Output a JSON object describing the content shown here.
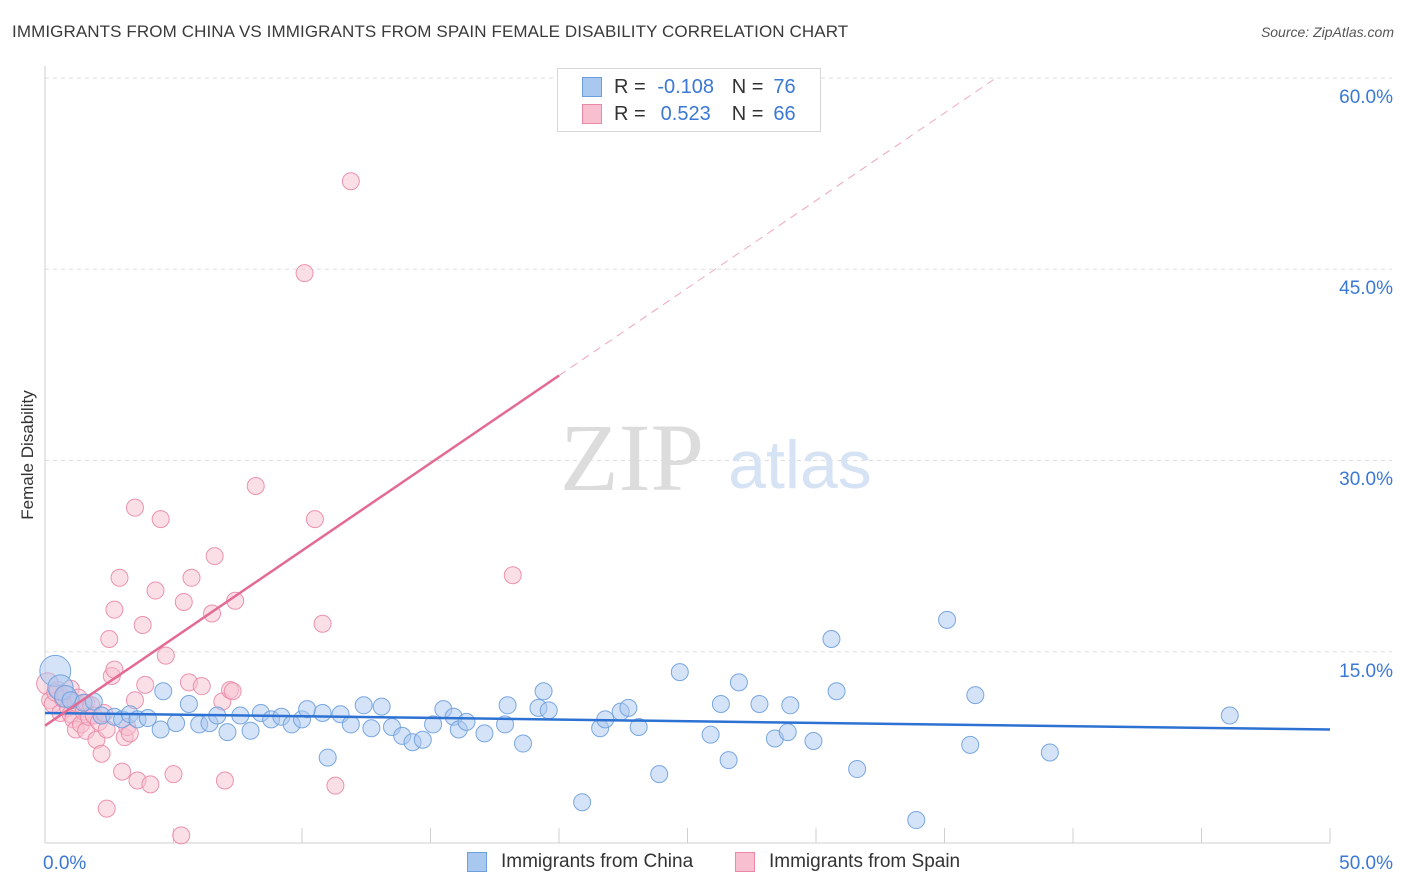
{
  "header": {
    "title": "IMMIGRANTS FROM CHINA VS IMMIGRANTS FROM SPAIN FEMALE DISABILITY CORRELATION CHART",
    "source": "Source: ZipAtlas.com"
  },
  "watermark": {
    "zip": "ZIP",
    "atlas": "atlas"
  },
  "legend": {
    "china": {
      "r_label": "R =",
      "r_value": "-0.108",
      "n_label": "N =",
      "n_value": "76"
    },
    "spain": {
      "r_label": "R =",
      "r_value": "0.523",
      "n_label": "N =",
      "n_value": "66"
    }
  },
  "bottom_legend": {
    "china": "Immigrants from China",
    "spain": "Immigrants from Spain"
  },
  "axes": {
    "x_left_label": "0.0%",
    "x_right_label": "50.0%",
    "y_labels": [
      "60.0%",
      "45.0%",
      "30.0%",
      "15.0%"
    ]
  },
  "colors": {
    "china_fill": "#a9c8f0",
    "china_stroke": "#6d9fdd",
    "china_line": "#2d72d2",
    "spain_fill": "#f8bfd0",
    "spain_stroke": "#ea88a6",
    "spain_line": "#e36a93",
    "grid": "#dddddd",
    "tick_text": "#3a78d6"
  },
  "chart_data": {
    "type": "scatter",
    "title": "IMMIGRANTS FROM CHINA VS IMMIGRANTS FROM SPAIN FEMALE DISABILITY CORRELATION CHART",
    "xlabel": "",
    "ylabel": "Female Disability",
    "xlim": [
      0,
      50
    ],
    "ylim": [
      0,
      60
    ],
    "y_ticks": [
      15,
      30,
      45,
      60
    ],
    "series": [
      {
        "name": "Immigrants from China",
        "r": -0.108,
        "n": 76,
        "trend": {
          "x0": 0,
          "y0": 10.2,
          "x1": 50,
          "y1": 8.9,
          "dashed_from": null
        },
        "points": [
          [
            0.4,
            13.5,
            3
          ],
          [
            0.6,
            12.2,
            2
          ],
          [
            0.8,
            11.5,
            1.5
          ],
          [
            1.0,
            11.2,
            1
          ],
          [
            1.5,
            11.0,
            1
          ],
          [
            1.9,
            11.1,
            1
          ],
          [
            2.2,
            10.0,
            1
          ],
          [
            2.7,
            9.9,
            1
          ],
          [
            3.0,
            9.7,
            1
          ],
          [
            3.3,
            10.1,
            1
          ],
          [
            3.6,
            9.7,
            1
          ],
          [
            4.0,
            9.8,
            1
          ],
          [
            4.5,
            8.9,
            1
          ],
          [
            4.6,
            11.9,
            1
          ],
          [
            5.1,
            9.4,
            1
          ],
          [
            5.6,
            10.9,
            1
          ],
          [
            6.0,
            9.3,
            1
          ],
          [
            6.4,
            9.4,
            1
          ],
          [
            6.7,
            10.0,
            1
          ],
          [
            7.1,
            8.7,
            1
          ],
          [
            7.6,
            10.0,
            1
          ],
          [
            8.0,
            8.8,
            1
          ],
          [
            8.4,
            10.2,
            1
          ],
          [
            8.8,
            9.7,
            1
          ],
          [
            9.2,
            9.9,
            1
          ],
          [
            9.6,
            9.3,
            1
          ],
          [
            10.0,
            9.7,
            1
          ],
          [
            10.2,
            10.5,
            1
          ],
          [
            10.8,
            10.2,
            1
          ],
          [
            11.0,
            6.7,
            1
          ],
          [
            11.5,
            10.1,
            1
          ],
          [
            11.9,
            9.3,
            1
          ],
          [
            12.4,
            10.8,
            1
          ],
          [
            12.7,
            9.0,
            1
          ],
          [
            13.1,
            10.7,
            1
          ],
          [
            13.5,
            9.1,
            1
          ],
          [
            13.9,
            8.4,
            1
          ],
          [
            14.3,
            7.9,
            1
          ],
          [
            14.7,
            8.1,
            1
          ],
          [
            15.1,
            9.3,
            1
          ],
          [
            15.5,
            10.5,
            1
          ],
          [
            15.9,
            9.9,
            1
          ],
          [
            16.1,
            8.9,
            1
          ],
          [
            16.4,
            9.5,
            1
          ],
          [
            17.1,
            8.6,
            1
          ],
          [
            17.9,
            9.3,
            1
          ],
          [
            18.0,
            10.8,
            1
          ],
          [
            18.6,
            7.8,
            1
          ],
          [
            19.2,
            10.6,
            1
          ],
          [
            19.4,
            11.9,
            1
          ],
          [
            19.6,
            10.4,
            1
          ],
          [
            20.9,
            3.2,
            1
          ],
          [
            21.6,
            9.0,
            1
          ],
          [
            21.8,
            9.7,
            1
          ],
          [
            22.4,
            10.3,
            1
          ],
          [
            22.7,
            10.6,
            1
          ],
          [
            23.1,
            9.1,
            1
          ],
          [
            23.9,
            5.4,
            1
          ],
          [
            24.7,
            13.4,
            1
          ],
          [
            25.9,
            8.5,
            1
          ],
          [
            26.3,
            10.9,
            1
          ],
          [
            26.6,
            6.5,
            1
          ],
          [
            27.0,
            12.6,
            1
          ],
          [
            27.8,
            10.9,
            1
          ],
          [
            28.4,
            8.2,
            1
          ],
          [
            28.9,
            8.7,
            1
          ],
          [
            29.0,
            10.8,
            1
          ],
          [
            29.9,
            8.0,
            1
          ],
          [
            30.6,
            16.0,
            1
          ],
          [
            30.8,
            11.9,
            1
          ],
          [
            31.6,
            5.8,
            1
          ],
          [
            33.9,
            1.8,
            1
          ],
          [
            35.1,
            17.5,
            1
          ],
          [
            36.0,
            7.7,
            1
          ],
          [
            36.2,
            11.6,
            1
          ],
          [
            39.1,
            7.1,
            1
          ],
          [
            46.1,
            10.0,
            1
          ]
        ]
      },
      {
        "name": "Immigrants from Spain",
        "r": 0.523,
        "n": 66,
        "trend": {
          "x0": 0,
          "y0": 9.2,
          "x1": 37.0,
          "y1": 60.0,
          "dashed_from": 20.0
        },
        "points": [
          [
            0.1,
            12.5,
            1.5
          ],
          [
            0.2,
            11.2,
            1
          ],
          [
            0.3,
            10.9,
            1
          ],
          [
            0.4,
            11.8,
            1
          ],
          [
            0.5,
            12.0,
            1
          ],
          [
            0.6,
            10.2,
            1
          ],
          [
            0.7,
            11.3,
            1
          ],
          [
            0.8,
            11.7,
            1
          ],
          [
            0.9,
            10.6,
            1
          ],
          [
            1.0,
            12.1,
            1
          ],
          [
            1.0,
            10.1,
            1
          ],
          [
            1.1,
            9.7,
            1
          ],
          [
            1.2,
            11.0,
            1
          ],
          [
            1.2,
            8.9,
            1
          ],
          [
            1.3,
            11.4,
            1
          ],
          [
            1.4,
            9.3,
            1
          ],
          [
            1.5,
            10.3,
            1
          ],
          [
            1.6,
            8.8,
            1
          ],
          [
            1.6,
            11.0,
            1
          ],
          [
            1.7,
            9.9,
            1
          ],
          [
            1.8,
            10.8,
            1
          ],
          [
            1.9,
            10.0,
            1
          ],
          [
            2.0,
            8.1,
            1
          ],
          [
            2.1,
            9.5,
            1
          ],
          [
            2.2,
            7.0,
            1
          ],
          [
            2.3,
            10.2,
            1
          ],
          [
            2.4,
            8.9,
            1
          ],
          [
            2.5,
            16.0,
            1
          ],
          [
            2.6,
            13.1,
            1
          ],
          [
            2.7,
            13.6,
            1
          ],
          [
            2.7,
            18.3,
            1
          ],
          [
            2.9,
            20.8,
            1
          ],
          [
            3.0,
            5.6,
            1
          ],
          [
            3.1,
            8.3,
            1
          ],
          [
            3.2,
            9.1,
            1
          ],
          [
            3.3,
            8.6,
            1
          ],
          [
            3.5,
            11.2,
            1
          ],
          [
            3.5,
            26.3,
            1
          ],
          [
            3.6,
            4.9,
            1
          ],
          [
            3.8,
            17.1,
            1
          ],
          [
            3.9,
            12.4,
            1
          ],
          [
            4.1,
            4.6,
            1
          ],
          [
            4.3,
            19.8,
            1
          ],
          [
            4.5,
            25.4,
            1
          ],
          [
            4.7,
            14.7,
            1
          ],
          [
            5.0,
            5.4,
            1
          ],
          [
            5.3,
            0.6,
            1
          ],
          [
            5.4,
            18.9,
            1
          ],
          [
            5.6,
            12.6,
            1
          ],
          [
            5.7,
            20.8,
            1
          ],
          [
            6.1,
            12.3,
            1
          ],
          [
            6.5,
            18.0,
            1
          ],
          [
            6.6,
            22.5,
            1
          ],
          [
            6.9,
            11.1,
            1
          ],
          [
            7.0,
            4.9,
            1
          ],
          [
            7.2,
            12.0,
            1
          ],
          [
            7.3,
            11.9,
            1
          ],
          [
            7.4,
            19.0,
            1
          ],
          [
            8.2,
            28.0,
            1
          ],
          [
            10.1,
            44.7,
            1
          ],
          [
            10.5,
            25.4,
            1
          ],
          [
            10.8,
            17.2,
            1
          ],
          [
            11.3,
            4.5,
            1
          ],
          [
            11.9,
            51.9,
            1
          ],
          [
            18.2,
            21.0,
            1
          ],
          [
            2.4,
            2.7,
            1
          ]
        ]
      }
    ]
  }
}
